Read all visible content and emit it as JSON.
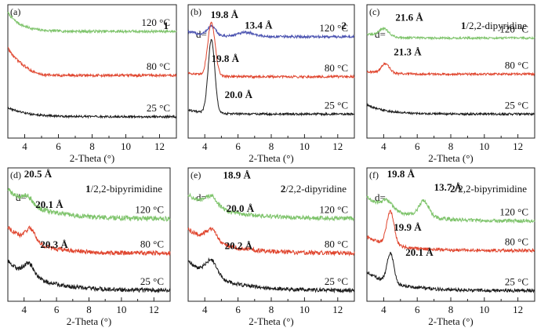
{
  "colors": {
    "25": "#1a1a1a",
    "80": "#e0452e",
    "120": "#7dc36a",
    "120_blue": "#4a52b0"
  },
  "chart_data": [
    {
      "type": "line",
      "panel": "(a)",
      "title_bold": "1",
      "title_rest": "",
      "xlabel": "2-Theta (°)",
      "xticks": [
        "4",
        "6",
        "8",
        "10",
        "12"
      ],
      "xlim": [
        3,
        13
      ],
      "d_label": "",
      "series": [
        {
          "name": "120 °C",
          "temp": "120",
          "color_key": "120",
          "baseline": 0.8,
          "decay_amp": 0.14,
          "decay_rate": 1.3,
          "noise": 0.01,
          "peaks": []
        },
        {
          "name": "80 °C",
          "temp": "80",
          "color_key": "80",
          "baseline": 0.47,
          "decay_amp": 0.18,
          "decay_rate": 1.8,
          "noise": 0.01,
          "peaks": [
            {
              "x": 3.6,
              "h": 0.05,
              "w": 0.6
            }
          ]
        },
        {
          "name": "25 °C",
          "temp": "25",
          "color_key": "25",
          "baseline": 0.16,
          "decay_amp": 0.07,
          "decay_rate": 0.9,
          "noise": 0.008,
          "peaks": []
        }
      ],
      "peak_labels": []
    },
    {
      "type": "line",
      "panel": "(b)",
      "title_bold": "2",
      "title_rest": "",
      "xlabel": "2-Theta (°)",
      "xticks": [
        "4",
        "6",
        "8",
        "10",
        "12"
      ],
      "xlim": [
        3,
        13
      ],
      "d_label": "d=",
      "series": [
        {
          "name": "120 °C",
          "temp": "120",
          "color_key": "120_blue",
          "baseline": 0.76,
          "decay_amp": 0.04,
          "decay_rate": 1.0,
          "noise": 0.01,
          "peaks": [
            {
              "x": 4.4,
              "h": 0.07,
              "w": 0.25
            },
            {
              "x": 6.5,
              "h": 0.03,
              "w": 0.5
            }
          ]
        },
        {
          "name": "80 °C",
          "temp": "80",
          "color_key": "80",
          "baseline": 0.46,
          "decay_amp": 0.03,
          "decay_rate": 1.0,
          "noise": 0.009,
          "peaks": [
            {
              "x": 4.4,
              "h": 0.4,
              "w": 0.22
            }
          ]
        },
        {
          "name": "25 °C",
          "temp": "25",
          "color_key": "25",
          "baseline": 0.18,
          "decay_amp": 0.03,
          "decay_rate": 1.0,
          "noise": 0.008,
          "peaks": [
            {
              "x": 4.4,
              "h": 0.55,
              "w": 0.2
            }
          ]
        }
      ],
      "peak_labels": [
        {
          "text": "19.8 Å",
          "x": 4.35,
          "y": 0.9
        },
        {
          "text": "13.4 Å",
          "x": 6.4,
          "y": 0.82
        },
        {
          "text": "19.8 Å",
          "x": 4.4,
          "y": 0.57
        },
        {
          "text": "20.0 Å",
          "x": 5.2,
          "y": 0.3
        }
      ]
    },
    {
      "type": "line",
      "panel": "(c)",
      "title_bold": "1",
      "title_rest": "/2,2-dipyridine",
      "xlabel": "2-Theta (°)",
      "xticks": [
        "4",
        "6",
        "8",
        "10",
        "12"
      ],
      "xlim": [
        3,
        13
      ],
      "d_label": "d=",
      "series": [
        {
          "name": "120 °C",
          "temp": "120",
          "color_key": "120",
          "baseline": 0.75,
          "decay_amp": 0.03,
          "decay_rate": 1.0,
          "noise": 0.008,
          "peaks": [
            {
              "x": 4.0,
              "h": 0.06,
              "w": 0.3
            }
          ]
        },
        {
          "name": "80 °C",
          "temp": "80",
          "color_key": "80",
          "baseline": 0.48,
          "decay_amp": 0.02,
          "decay_rate": 1.0,
          "noise": 0.008,
          "peaks": [
            {
              "x": 4.1,
              "h": 0.07,
              "w": 0.25
            }
          ]
        },
        {
          "name": "25 °C",
          "temp": "25",
          "color_key": "25",
          "baseline": 0.18,
          "decay_amp": 0.07,
          "decay_rate": 0.9,
          "noise": 0.008,
          "peaks": []
        }
      ],
      "peak_labels": [
        {
          "text": "21.6 Å",
          "x": 4.7,
          "y": 0.88
        },
        {
          "text": "21.3 Å",
          "x": 4.6,
          "y": 0.62
        }
      ]
    },
    {
      "type": "line",
      "panel": "(d)",
      "title_bold": "1",
      "title_rest": "/2,2-bipyrimidine",
      "xlabel": "2-Theta (°)",
      "xticks": [
        "4",
        "6",
        "8",
        "10",
        "12"
      ],
      "xlim": [
        3,
        13
      ],
      "d_label": "d=",
      "series": [
        {
          "name": "120 °C",
          "temp": "120",
          "color_key": "120",
          "baseline": 0.62,
          "decay_amp": 0.22,
          "decay_rate": 0.55,
          "noise": 0.018,
          "peaks": [
            {
              "x": 4.2,
              "h": 0.06,
              "w": 0.3
            }
          ]
        },
        {
          "name": "80 °C",
          "temp": "80",
          "color_key": "80",
          "baseline": 0.36,
          "decay_amp": 0.2,
          "decay_rate": 0.6,
          "noise": 0.016,
          "peaks": [
            {
              "x": 4.4,
              "h": 0.1,
              "w": 0.3
            }
          ]
        },
        {
          "name": "25 °C",
          "temp": "25",
          "color_key": "25",
          "baseline": 0.08,
          "decay_amp": 0.22,
          "decay_rate": 0.5,
          "noise": 0.016,
          "peaks": [
            {
              "x": 4.3,
              "h": 0.09,
              "w": 0.3
            }
          ]
        }
      ],
      "peak_labels": [
        {
          "text": "20.5 Å",
          "x": 4.0,
          "y": 0.93
        },
        {
          "text": "20.1 Å",
          "x": 4.7,
          "y": 0.7
        },
        {
          "text": "20.3 Å",
          "x": 5.0,
          "y": 0.4
        }
      ]
    },
    {
      "type": "line",
      "panel": "(e)",
      "title_bold": "2",
      "title_rest": "/2,2-dipyridine",
      "xlabel": "2-Theta (°)",
      "xticks": [
        "4",
        "6",
        "8",
        "10",
        "12"
      ],
      "xlim": [
        3,
        13
      ],
      "d_label": "d=",
      "series": [
        {
          "name": "120 °C",
          "temp": "120",
          "color_key": "120",
          "baseline": 0.62,
          "decay_amp": 0.18,
          "decay_rate": 0.5,
          "noise": 0.016,
          "peaks": [
            {
              "x": 4.4,
              "h": 0.08,
              "w": 0.35
            }
          ]
        },
        {
          "name": "80 °C",
          "temp": "80",
          "color_key": "80",
          "baseline": 0.36,
          "decay_amp": 0.18,
          "decay_rate": 0.5,
          "noise": 0.016,
          "peaks": [
            {
              "x": 4.4,
              "h": 0.09,
              "w": 0.35
            }
          ]
        },
        {
          "name": "25 °C",
          "temp": "25",
          "color_key": "25",
          "baseline": 0.08,
          "decay_amp": 0.22,
          "decay_rate": 0.5,
          "noise": 0.014,
          "peaks": [
            {
              "x": 4.4,
              "h": 0.12,
              "w": 0.35
            }
          ]
        }
      ],
      "peak_labels": [
        {
          "text": "18.9 Å",
          "x": 5.1,
          "y": 0.92
        },
        {
          "text": "20.0 Å",
          "x": 5.3,
          "y": 0.67
        },
        {
          "text": "20.2 Å",
          "x": 5.2,
          "y": 0.39
        }
      ]
    },
    {
      "type": "line",
      "panel": "(f)",
      "title_bold": "2",
      "title_rest": "/2,2-bipyrimidine",
      "xlabel": "2-Theta (°)",
      "xticks": [
        "4",
        "6",
        "8",
        "10",
        "12"
      ],
      "xlim": [
        3,
        13
      ],
      "d_label": "d=",
      "series": [
        {
          "name": "120 °C",
          "temp": "120",
          "color_key": "120",
          "baseline": 0.6,
          "decay_amp": 0.18,
          "decay_rate": 0.5,
          "noise": 0.014,
          "peaks": [
            {
              "x": 4.2,
              "h": 0.06,
              "w": 0.3
            },
            {
              "x": 6.4,
              "h": 0.12,
              "w": 0.3
            }
          ]
        },
        {
          "name": "80 °C",
          "temp": "80",
          "color_key": "80",
          "baseline": 0.38,
          "decay_amp": 0.1,
          "decay_rate": 0.6,
          "noise": 0.012,
          "peaks": [
            {
              "x": 4.4,
              "h": 0.25,
              "w": 0.22
            }
          ]
        },
        {
          "name": "25 °C",
          "temp": "25",
          "color_key": "25",
          "baseline": 0.08,
          "decay_amp": 0.14,
          "decay_rate": 0.6,
          "noise": 0.012,
          "peaks": [
            {
              "x": 4.4,
              "h": 0.22,
              "w": 0.2
            }
          ]
        }
      ],
      "peak_labels": [
        {
          "text": "19.8 Å",
          "x": 4.2,
          "y": 0.93
        },
        {
          "text": "13.7 Å",
          "x": 7.0,
          "y": 0.83
        },
        {
          "text": "19.9 Å",
          "x": 4.6,
          "y": 0.53
        },
        {
          "text": "20.1 Å",
          "x": 5.3,
          "y": 0.34
        }
      ]
    }
  ]
}
